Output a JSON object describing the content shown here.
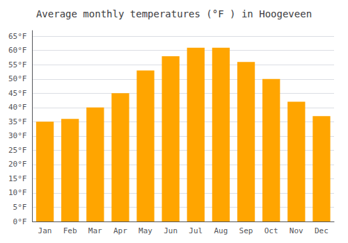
{
  "chart_data": {
    "type": "bar",
    "title": "Average monthly temperatures (°F ) in Hoogeveen",
    "categories": [
      "Jan",
      "Feb",
      "Mar",
      "Apr",
      "May",
      "Jun",
      "Jul",
      "Aug",
      "Sep",
      "Oct",
      "Nov",
      "Dec"
    ],
    "values": [
      35,
      36,
      40,
      45,
      53,
      58,
      61,
      61,
      56,
      50,
      42,
      37
    ],
    "color": "#FFA500",
    "ylim": [
      0,
      67
    ],
    "yticks": [
      {
        "value": 0,
        "label": "0°F"
      },
      {
        "value": 5,
        "label": "5°F"
      },
      {
        "value": 10,
        "label": "10°F"
      },
      {
        "value": 15,
        "label": "15°F"
      },
      {
        "value": 20,
        "label": "20°F"
      },
      {
        "value": 25,
        "label": "25°F"
      },
      {
        "value": 30,
        "label": "30°F"
      },
      {
        "value": 35,
        "label": "35°F"
      },
      {
        "value": 40,
        "label": "40°F"
      },
      {
        "value": 45,
        "label": "45°F"
      },
      {
        "value": 50,
        "label": "50°F"
      },
      {
        "value": 55,
        "label": "55°F"
      },
      {
        "value": 60,
        "label": "60°F"
      },
      {
        "value": 65,
        "label": "65°F"
      }
    ],
    "grid": true
  }
}
